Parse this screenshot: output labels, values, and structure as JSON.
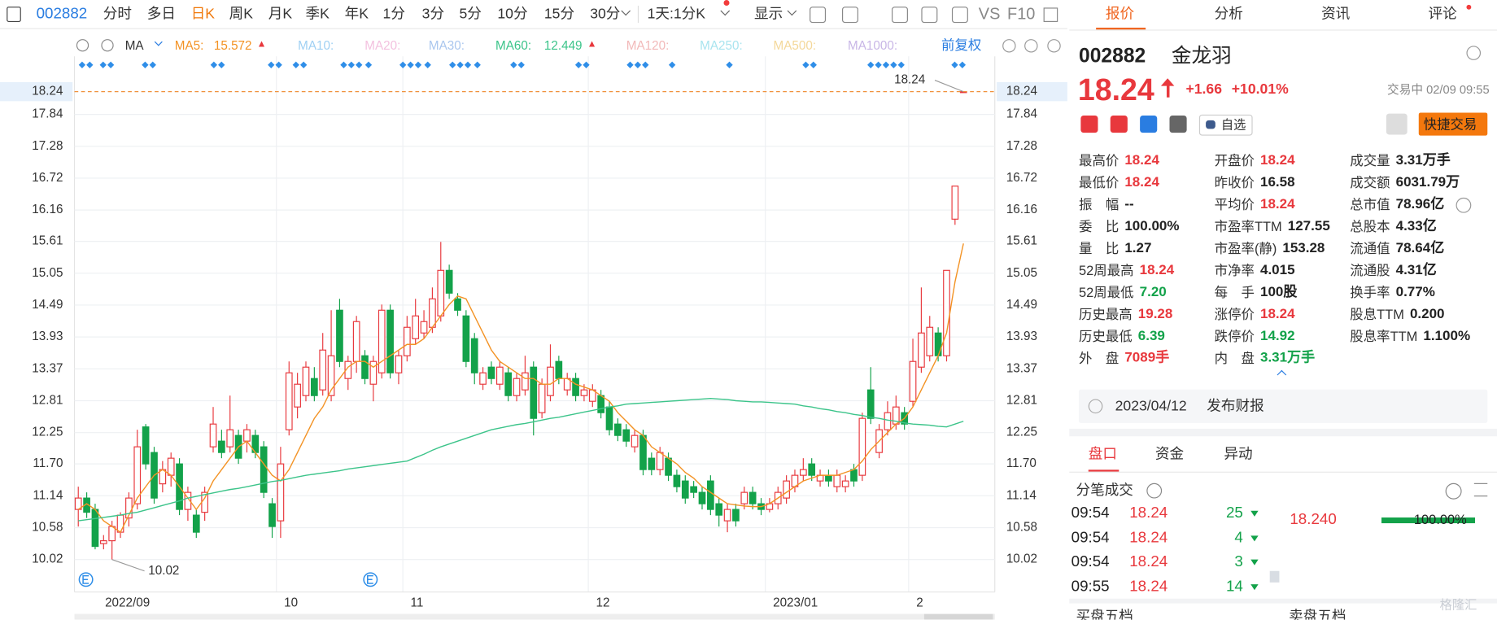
{
  "toolbar": {
    "code": "002882",
    "periods": [
      "分时",
      "多日",
      "日K",
      "周K",
      "月K",
      "季K",
      "年K",
      "1分",
      "3分",
      "5分",
      "10分",
      "15分",
      "30分"
    ],
    "active_period": 2,
    "range": "1天:1分K",
    "display": "显示",
    "vs": "VS",
    "f10": "F10"
  },
  "indicator_bar": {
    "ma": "MA",
    "inactive": [
      {
        "name": "MA10:",
        "color": "#9fd0f3"
      },
      {
        "name": "MA20:",
        "color": "#f3c1df"
      },
      {
        "name": "MA30:",
        "color": "#a9c6ee"
      },
      {
        "name": "MA120:",
        "color": "#f2b9b9"
      },
      {
        "name": "MA250:",
        "color": "#a9e4ef"
      },
      {
        "name": "MA500:",
        "color": "#f4d89a"
      },
      {
        "name": "MA1000:",
        "color": "#c8b6e6"
      }
    ],
    "adjust": "前复权"
  },
  "chart_data": {
    "type": "candlestick",
    "categories": [
      "2022/09",
      null,
      null,
      null,
      null,
      null,
      null,
      null,
      null,
      null,
      null,
      null,
      null,
      null,
      null,
      null,
      null,
      null,
      null,
      null,
      null,
      null,
      null,
      null,
      "10",
      null,
      null,
      null,
      null,
      null,
      null,
      null,
      null,
      null,
      null,
      null,
      null,
      null,
      null,
      "11",
      null,
      null,
      null,
      null,
      null,
      null,
      null,
      null,
      null,
      null,
      null,
      null,
      null,
      null,
      null,
      null,
      null,
      null,
      null,
      null,
      null,
      "12",
      null,
      null,
      null,
      null,
      null,
      null,
      null,
      null,
      null,
      null,
      null,
      null,
      null,
      null,
      null,
      null,
      null,
      null,
      null,
      null,
      "2023/01",
      null,
      null,
      null,
      null,
      null,
      null,
      null,
      null,
      null,
      null,
      null,
      null,
      null,
      null,
      null,
      null,
      "2",
      null,
      null,
      null,
      null,
      null,
      null
    ],
    "ohlc": [
      [
        10.9,
        11.3,
        10.6,
        11.1
      ],
      [
        11.1,
        11.2,
        10.75,
        10.85
      ],
      [
        10.9,
        11.0,
        10.2,
        10.25
      ],
      [
        10.3,
        10.45,
        10.2,
        10.35
      ],
      [
        10.35,
        10.7,
        10.02,
        10.6
      ],
      [
        10.5,
        10.85,
        10.4,
        10.8
      ],
      [
        10.75,
        11.2,
        10.6,
        11.1
      ],
      [
        11.0,
        12.3,
        10.9,
        12.0
      ],
      [
        12.35,
        12.4,
        11.6,
        11.7
      ],
      [
        11.9,
        12.0,
        11.0,
        11.1
      ],
      [
        11.35,
        11.75,
        11.2,
        11.6
      ],
      [
        11.5,
        11.9,
        11.3,
        11.8
      ],
      [
        11.7,
        11.8,
        10.8,
        10.9
      ],
      [
        10.9,
        11.3,
        10.7,
        11.2
      ],
      [
        10.8,
        10.9,
        10.4,
        10.5
      ],
      [
        10.85,
        11.3,
        10.7,
        11.2
      ],
      [
        12.0,
        12.7,
        11.9,
        12.4
      ],
      [
        12.1,
        12.3,
        11.8,
        11.9
      ],
      [
        12.0,
        12.9,
        11.9,
        12.3
      ],
      [
        12.2,
        12.3,
        11.7,
        11.8
      ],
      [
        12.1,
        12.4,
        11.9,
        12.3
      ],
      [
        12.2,
        12.3,
        11.8,
        11.9
      ],
      [
        12.0,
        12.1,
        11.1,
        11.2
      ],
      [
        11.0,
        11.1,
        10.4,
        10.6
      ],
      [
        10.7,
        12.0,
        10.4,
        11.7
      ],
      [
        12.3,
        13.5,
        12.2,
        13.3
      ],
      [
        12.7,
        13.3,
        12.5,
        13.1
      ],
      [
        12.9,
        13.5,
        12.8,
        13.4
      ],
      [
        13.2,
        13.4,
        12.8,
        12.9
      ],
      [
        13.0,
        14.0,
        12.9,
        13.7
      ],
      [
        12.9,
        14.4,
        12.8,
        13.6
      ],
      [
        14.4,
        14.6,
        13.4,
        13.5
      ],
      [
        13.2,
        13.6,
        13.0,
        13.5
      ],
      [
        13.5,
        14.3,
        13.3,
        14.2
      ],
      [
        13.6,
        13.7,
        13.1,
        13.2
      ],
      [
        13.1,
        13.6,
        12.8,
        13.5
      ],
      [
        13.3,
        14.5,
        13.2,
        14.4
      ],
      [
        14.4,
        14.5,
        13.2,
        13.3
      ],
      [
        13.3,
        13.7,
        13.1,
        13.6
      ],
      [
        13.6,
        14.3,
        13.5,
        14.1
      ],
      [
        13.9,
        14.6,
        13.8,
        14.3
      ],
      [
        14.0,
        14.4,
        13.9,
        14.2
      ],
      [
        14.1,
        14.8,
        14.0,
        14.6
      ],
      [
        14.3,
        15.6,
        14.2,
        15.1
      ],
      [
        15.1,
        15.2,
        14.6,
        14.7
      ],
      [
        14.6,
        14.7,
        14.3,
        14.4
      ],
      [
        14.3,
        14.4,
        13.4,
        13.5
      ],
      [
        13.9,
        14.0,
        13.1,
        13.3
      ],
      [
        13.1,
        13.4,
        13.0,
        13.3
      ],
      [
        13.4,
        13.5,
        13.1,
        13.2
      ],
      [
        13.1,
        13.5,
        13.0,
        13.4
      ],
      [
        13.3,
        13.4,
        12.8,
        12.9
      ],
      [
        12.9,
        13.3,
        12.8,
        13.2
      ],
      [
        13.0,
        13.6,
        12.9,
        13.3
      ],
      [
        13.4,
        13.5,
        12.2,
        12.5
      ],
      [
        12.6,
        13.2,
        12.5,
        13.1
      ],
      [
        12.9,
        13.8,
        12.8,
        13.4
      ],
      [
        13.5,
        13.6,
        13.1,
        13.2
      ],
      [
        13.0,
        13.3,
        12.9,
        13.2
      ],
      [
        13.2,
        13.3,
        12.8,
        12.9
      ],
      [
        12.9,
        13.1,
        12.8,
        13.0
      ],
      [
        12.8,
        13.1,
        12.7,
        13.0
      ],
      [
        12.9,
        13.0,
        12.5,
        12.6
      ],
      [
        12.7,
        12.8,
        12.2,
        12.3
      ],
      [
        12.4,
        12.5,
        12.1,
        12.2
      ],
      [
        12.3,
        12.4,
        12.0,
        12.1
      ],
      [
        12.0,
        12.3,
        11.9,
        12.2
      ],
      [
        12.2,
        12.3,
        11.5,
        11.6
      ],
      [
        11.8,
        11.9,
        11.5,
        11.6
      ],
      [
        11.6,
        12.0,
        11.5,
        11.9
      ],
      [
        11.8,
        11.9,
        11.4,
        11.5
      ],
      [
        11.5,
        11.6,
        11.2,
        11.3
      ],
      [
        11.4,
        11.5,
        11.0,
        11.1
      ],
      [
        11.3,
        11.4,
        11.1,
        11.2
      ],
      [
        11.2,
        11.3,
        10.9,
        11.0
      ],
      [
        11.4,
        11.5,
        10.8,
        10.9
      ],
      [
        11.0,
        11.1,
        10.6,
        10.8
      ],
      [
        10.7,
        11.0,
        10.5,
        10.9
      ],
      [
        10.9,
        11.0,
        10.6,
        10.7
      ],
      [
        11.0,
        11.3,
        10.9,
        11.2
      ],
      [
        11.2,
        11.3,
        10.9,
        11.0
      ],
      [
        11.0,
        11.1,
        10.8,
        10.9
      ],
      [
        10.9,
        11.1,
        10.85,
        11.0
      ],
      [
        11.0,
        11.3,
        10.9,
        11.2
      ],
      [
        11.1,
        11.5,
        11.0,
        11.4
      ],
      [
        11.3,
        11.6,
        11.2,
        11.5
      ],
      [
        11.5,
        11.8,
        11.4,
        11.6
      ],
      [
        11.7,
        11.8,
        11.4,
        11.5
      ],
      [
        11.4,
        11.6,
        11.3,
        11.5
      ],
      [
        11.5,
        11.6,
        11.3,
        11.4
      ],
      [
        11.3,
        11.6,
        11.2,
        11.5
      ],
      [
        11.3,
        11.5,
        11.2,
        11.4
      ],
      [
        11.6,
        11.7,
        11.3,
        11.4
      ],
      [
        11.5,
        12.6,
        11.4,
        12.5
      ],
      [
        13.0,
        13.4,
        12.4,
        12.5
      ],
      [
        11.9,
        12.4,
        11.8,
        12.3
      ],
      [
        12.3,
        12.8,
        12.2,
        12.6
      ],
      [
        12.4,
        12.9,
        12.3,
        12.7
      ],
      [
        12.6,
        12.7,
        12.3,
        12.4
      ],
      [
        12.8,
        13.9,
        12.7,
        13.5
      ],
      [
        13.4,
        14.8,
        13.3,
        14.0
      ],
      [
        13.6,
        14.3,
        13.5,
        14.1
      ],
      [
        14.0,
        14.1,
        13.5,
        13.6
      ],
      [
        13.6,
        15.1,
        13.5,
        15.1
      ],
      [
        16.0,
        16.58,
        15.9,
        16.58
      ],
      [
        18.24,
        18.24,
        18.24,
        18.24
      ]
    ],
    "up_color": "#e8383d",
    "down_color": "#13a24a",
    "series": [
      {
        "name": "MA5:",
        "color": "#f39325",
        "values": [
          10.9,
          11.0,
          10.9,
          10.7,
          10.6,
          10.5,
          10.8,
          11.1,
          11.3,
          11.5,
          11.6,
          11.5,
          11.3,
          11.1,
          10.9,
          11.1,
          11.4,
          11.6,
          11.8,
          12.0,
          12.1,
          11.9,
          11.7,
          11.5,
          11.4,
          11.6,
          11.9,
          12.2,
          12.5,
          12.7,
          13.0,
          13.2,
          13.4,
          13.5,
          13.5,
          13.4,
          13.5,
          13.6,
          13.7,
          13.8,
          13.8,
          13.9,
          14.1,
          14.3,
          14.5,
          14.65,
          14.6,
          14.3,
          14.0,
          13.7,
          13.5,
          13.4,
          13.3,
          13.2,
          13.2,
          13.1,
          13.1,
          13.2,
          13.2,
          13.1,
          13.05,
          13.0,
          12.9,
          12.8,
          12.6,
          12.45,
          12.3,
          12.2,
          12.0,
          11.9,
          11.8,
          11.7,
          11.55,
          11.45,
          11.3,
          11.2,
          11.1,
          11.0,
          10.98,
          10.96,
          10.95,
          10.95,
          11.0,
          11.1,
          11.2,
          11.3,
          11.4,
          11.45,
          11.5,
          11.5,
          11.5,
          11.55,
          11.6,
          11.75,
          11.95,
          12.1,
          12.25,
          12.4,
          12.5,
          12.7,
          13.0,
          13.3,
          13.6,
          14.0,
          14.9,
          15.572
        ]
      },
      {
        "name": "MA60:",
        "color": "#3cc48a",
        "values": [
          10.7,
          10.72,
          10.74,
          10.76,
          10.78,
          10.8,
          10.83,
          10.85,
          10.89,
          10.93,
          10.97,
          11.01,
          11.05,
          11.1,
          11.13,
          11.16,
          11.19,
          11.22,
          11.25,
          11.27,
          11.3,
          11.33,
          11.36,
          11.39,
          11.41,
          11.44,
          11.47,
          11.5,
          11.52,
          11.54,
          11.56,
          11.58,
          11.61,
          11.63,
          11.65,
          11.67,
          11.69,
          11.71,
          11.73,
          11.75,
          11.81,
          11.87,
          11.94,
          12.0,
          12.05,
          12.1,
          12.15,
          12.2,
          12.25,
          12.3,
          12.33,
          12.36,
          12.39,
          12.41,
          12.44,
          12.47,
          12.5,
          12.52,
          12.55,
          12.58,
          12.61,
          12.64,
          12.67,
          12.7,
          12.72,
          12.75,
          12.76,
          12.77,
          12.78,
          12.79,
          12.8,
          12.81,
          12.82,
          12.83,
          12.84,
          12.85,
          12.84,
          12.83,
          12.81,
          12.8,
          12.79,
          12.79,
          12.78,
          12.77,
          12.76,
          12.75,
          12.72,
          12.7,
          12.67,
          12.65,
          12.62,
          12.6,
          12.57,
          12.55,
          12.52,
          12.5,
          12.47,
          12.45,
          12.42,
          12.4,
          12.39,
          12.38,
          12.36,
          12.35,
          12.4,
          12.449
        ]
      }
    ],
    "ylim": [
      9.45,
      18.81
    ],
    "yticks": [
      10.02,
      10.58,
      11.14,
      {
        "value": 11.7,
        "label": "11.70"
      },
      12.25,
      12.81,
      13.37,
      13.93,
      14.49,
      15.05,
      15.61,
      16.16,
      16.72,
      17.28,
      17.84
    ],
    "grid": true
  },
  "tabs": [
    "报价",
    "分析",
    "资讯",
    "评论"
  ],
  "active_tab": 0,
  "quote": {
    "code": "002882",
    "name": "金龙羽",
    "price": 18.24,
    "change": "+1.66",
    "change_pct": "+10.01%",
    "status": "交易中 02/09 09:55",
    "watch": "自选",
    "trade": "快捷交易"
  },
  "stats": [
    [
      {
        "label": "最高价",
        "value": "18.24",
        "color": "red"
      },
      {
        "label": "最低价",
        "value": "18.24",
        "color": "red"
      },
      {
        "label": "振　幅",
        "value": "--",
        "color": "dark"
      },
      {
        "label": "委　比",
        "value": "100.00%",
        "color": "dark"
      },
      {
        "label": "量　比",
        "value": "1.27",
        "color": "dark"
      },
      {
        "label": "52周最高",
        "value": "18.24",
        "color": "red"
      },
      {
        "label": "52周最低",
        "value": "7.20",
        "color": "green"
      },
      {
        "label": "历史最高",
        "value": "19.28",
        "color": "red"
      },
      {
        "label": "历史最低",
        "value": "6.39",
        "color": "green"
      },
      {
        "label": "外　盘",
        "value": "7089手",
        "color": "red"
      }
    ],
    [
      {
        "label": "开盘价",
        "value": "18.24",
        "color": "red"
      },
      {
        "label": "昨收价",
        "value": "16.58",
        "color": "dark"
      },
      {
        "label": "平均价",
        "value": "18.24",
        "color": "red"
      },
      {
        "label": "市盈率TTM",
        "value": "127.55",
        "color": "dark"
      },
      {
        "label": "市盈率(静)",
        "value": "153.28",
        "color": "dark"
      },
      {
        "label": "市净率",
        "value": "4.015",
        "color": "dark"
      },
      {
        "label": "每　手",
        "value": "100股",
        "color": "dark"
      },
      {
        "label": "涨停价",
        "value": "18.24",
        "color": "red"
      },
      {
        "label": "跌停价",
        "value": "14.92",
        "color": "green"
      },
      {
        "label": "内　盘",
        "value": "3.31万手",
        "color": "green"
      }
    ],
    [
      {
        "label": "成交量",
        "value": "3.31万手",
        "color": "dark"
      },
      {
        "label": "成交额",
        "value": "6031.79万",
        "color": "dark"
      },
      {
        "label": "总市值",
        "value": "78.96亿",
        "color": "dark"
      },
      {
        "label": "总股本",
        "value": "4.33亿",
        "color": "dark"
      },
      {
        "label": "流通值",
        "value": "78.64亿",
        "color": "dark"
      },
      {
        "label": "流通股",
        "value": "4.31亿",
        "color": "dark"
      },
      {
        "label": "换手率",
        "value": "0.77%",
        "color": "dark"
      },
      {
        "label": "股息TTM",
        "value": "0.200",
        "color": "dark"
      },
      {
        "label": "股息率TTM",
        "value": "1.100%",
        "color": "dark"
      }
    ]
  ],
  "notice": {
    "date": "2023/04/12",
    "text": "发布财报"
  },
  "sub_tabs": [
    "盘口",
    "资金",
    "异动"
  ],
  "active_sub_tab": 0,
  "trades": {
    "title": "分笔成交",
    "rows": [
      [
        "09:54",
        "18.24",
        "25"
      ],
      [
        "09:54",
        "18.24",
        "4"
      ],
      [
        "09:54",
        "18.24",
        "3"
      ],
      [
        "09:55",
        "18.24",
        "14"
      ]
    ],
    "price": "18.240",
    "ratio": "100.00%"
  },
  "order_book": [
    "买盘五档",
    "卖盘五档"
  ],
  "watermark": "格隆汇"
}
